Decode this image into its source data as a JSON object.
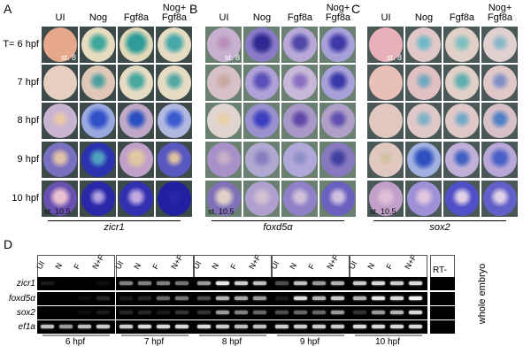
{
  "panels": [
    {
      "letter": "A",
      "gene": "zicr1",
      "columns": [
        "UI",
        "Nog",
        "Fgf8a",
        "Nog+\nFgf8a"
      ],
      "rows": [
        [
          [
            "#e6a88a",
            "#e6a88a",
            0
          ],
          [
            "#e6dcc0",
            "#3fa89a",
            0.5
          ],
          [
            "#e0d8b8",
            "#2f9c9a",
            0.7
          ],
          [
            "#e6dcc4",
            "#46a8a8",
            0.55
          ]
        ],
        [
          [
            "#e6cfc0",
            "#e6cfc0",
            0
          ],
          [
            "#e0c8b8",
            "#4ea0a0",
            0.35
          ],
          [
            "#e6dcc4",
            "#49a8a0",
            0.5
          ],
          [
            "#e6dcc4",
            "#54a8a4",
            0.4
          ]
        ],
        [
          [
            "#c8b4d0",
            "#e8c8a8",
            0.3
          ],
          [
            "#9aa8e0",
            "#3050c8",
            0.6
          ],
          [
            "#c0a8c8",
            "#2850c0",
            0.5
          ],
          [
            "#b0b8e0",
            "#3a5ad0",
            0.5
          ]
        ],
        [
          [
            "#7a70c0",
            "#e0c0a8",
            0.4
          ],
          [
            "#2a32b0",
            "#50a0c0",
            0.4
          ],
          [
            "#c0a0c8",
            "#e0c8a0",
            0.5
          ],
          [
            "#5858c0",
            "#e0c0a0",
            0.3
          ]
        ],
        [
          [
            "#6850b0",
            "#e8c0d0",
            0.5
          ],
          [
            "#2a28a8",
            "#b0a0e0",
            0.3
          ],
          [
            "#3030b0",
            "#c0a8e0",
            0.4
          ],
          [
            "#2020a0",
            "#2828a8",
            0.2
          ]
        ]
      ],
      "stage_top": "st. 8",
      "stage_bottom": "st. 10.5",
      "bg": "#3d4a4a"
    },
    {
      "letter": "B",
      "gene": "foxd5α",
      "columns": [
        "UI",
        "Nog",
        "Fgf8a",
        "Nog+\nFgf8a"
      ],
      "rows": [
        [
          [
            "#c8b0d0",
            "#b890b8",
            0.3
          ],
          [
            "#8a7ac8",
            "#302890",
            0.6
          ],
          [
            "#b8a8d8",
            "#5048a8",
            0.5
          ],
          [
            "#a8a0d8",
            "#403aa8",
            0.55
          ]
        ],
        [
          [
            "#d8c0c8",
            "#c8a8a0",
            0.3
          ],
          [
            "#b0a0d8",
            "#5a50b8",
            0.5
          ],
          [
            "#c8b8d8",
            "#8a70c0",
            0.4
          ],
          [
            "#a8a0d8",
            "#3838a8",
            0.5
          ]
        ],
        [
          [
            "#e0d4d0",
            "#e8d0a8",
            0.3
          ],
          [
            "#9a90d0",
            "#3a40c0",
            0.5
          ],
          [
            "#a898c8",
            "#6048a8",
            0.4
          ],
          [
            "#b0a0c8",
            "#6050b0",
            0.4
          ]
        ],
        [
          [
            "#a890c8",
            "#c8b0c8",
            0.3
          ],
          [
            "#b0a8d0",
            "#8a80c0",
            0.4
          ],
          [
            "#b0a8d8",
            "#9090c8",
            0.3
          ],
          [
            "#8878c0",
            "#4040a0",
            0.4
          ]
        ],
        [
          [
            "#8070b8",
            "#e0d0c8",
            0.5
          ],
          [
            "#b0a0d0",
            "#d0c0d0",
            0.4
          ],
          [
            "#9080c8",
            "#d0c0d8",
            0.4
          ],
          [
            "#6a60c0",
            "#d0c0e0",
            0.4
          ]
        ]
      ],
      "stage_top": "st. 8",
      "stage_bottom": "st. 10.5",
      "bg": "#6a8070"
    },
    {
      "letter": "C",
      "gene": "sox2",
      "columns": [
        "UI",
        "Nog",
        "Fgf8a",
        "Nog+\nFgf8a"
      ],
      "rows": [
        [
          [
            "#e8b0b8",
            "#e8b0b8",
            0
          ],
          [
            "#e0c8c8",
            "#70b8c8",
            0.35
          ],
          [
            "#e0d0c8",
            "#80c0c0",
            0.35
          ],
          [
            "#e0d0d0",
            "#88b8c8",
            0.3
          ]
        ],
        [
          [
            "#e8c0b8",
            "#e8c0b8",
            0
          ],
          [
            "#e0c0c0",
            "#70a8c0",
            0.3
          ],
          [
            "#e0d0c8",
            "#60b0b0",
            0.4
          ],
          [
            "#e0c8c8",
            "#8090c8",
            0.35
          ]
        ],
        [
          [
            "#e0c8c0",
            "#e0c8c0",
            0
          ],
          [
            "#e0c8c8",
            "#80b0c8",
            0.3
          ],
          [
            "#e0c8c8",
            "#70a8c8",
            0.3
          ],
          [
            "#d8c0c8",
            "#5080c8",
            0.4
          ]
        ],
        [
          [
            "#e0c8c0",
            "#d0c0a0",
            0.2
          ],
          [
            "#a0b0e0",
            "#3050c0",
            0.6
          ],
          [
            "#c0b0d8",
            "#4060c0",
            0.4
          ],
          [
            "#b8a8d8",
            "#4860c8",
            0.5
          ]
        ],
        [
          [
            "#c0a0c8",
            "#e0c0d8",
            0.4
          ],
          [
            "#a090d8",
            "#e0c8e0",
            0.4
          ],
          [
            "#5050c8",
            "#e0d0e8",
            0.4
          ],
          [
            "#6060c8",
            "#e0d0e8",
            0.4
          ]
        ]
      ],
      "stage_top": "st. 8",
      "stage_bottom": "st. 10.5",
      "bg": "#4a5858"
    }
  ],
  "row_labels": [
    "T= 6 hpf",
    "7 hpf",
    "8 hpf",
    "9 hpf",
    "10 hpf"
  ],
  "gel": {
    "letter": "D",
    "lanes": [
      "UI",
      "N",
      "F",
      "N+F"
    ],
    "timepoints": [
      "6 hpf",
      "7 hpf",
      "8 hpf",
      "9 hpf",
      "10 hpf"
    ],
    "genes": [
      "zicr1",
      "foxd5α",
      "sox2",
      "ef1a"
    ],
    "control_label": "RT-",
    "side_label": "whole embryo",
    "band_intensity": {
      "zicr1": [
        [
          0.1,
          0,
          0,
          0.05
        ],
        [
          0.5,
          0.5,
          0.5,
          0.45
        ],
        [
          0.6,
          0.9,
          0.8,
          0.75
        ],
        [
          0.3,
          0.75,
          0.6,
          0.7
        ],
        [
          0.8,
          0.85,
          0.8,
          0.85
        ]
      ],
      "foxd5α": [
        [
          0,
          0,
          0.05,
          0.15
        ],
        [
          0.1,
          0.15,
          0.4,
          0.45
        ],
        [
          0.3,
          0.7,
          0.65,
          0.6
        ],
        [
          0.1,
          0.85,
          0.7,
          0.8
        ],
        [
          0.7,
          0.9,
          0.85,
          0.95
        ]
      ],
      "sox2": [
        [
          0,
          0,
          0.05,
          0.1
        ],
        [
          0.15,
          0.15,
          0.1,
          0.2
        ],
        [
          0.2,
          0.6,
          0.5,
          0.4
        ],
        [
          0.3,
          0.4,
          0.4,
          0.6
        ],
        [
          0.2,
          0.6,
          0.7,
          0.85
        ]
      ],
      "ef1a": [
        [
          0.75,
          0.6,
          0.75,
          0.8
        ],
        [
          0.8,
          0.85,
          0.85,
          0.85
        ],
        [
          0.85,
          0.8,
          0.75,
          0.75
        ],
        [
          0.8,
          0.8,
          0.8,
          0.8
        ],
        [
          0.85,
          0.85,
          0.85,
          0.85
        ]
      ]
    }
  }
}
